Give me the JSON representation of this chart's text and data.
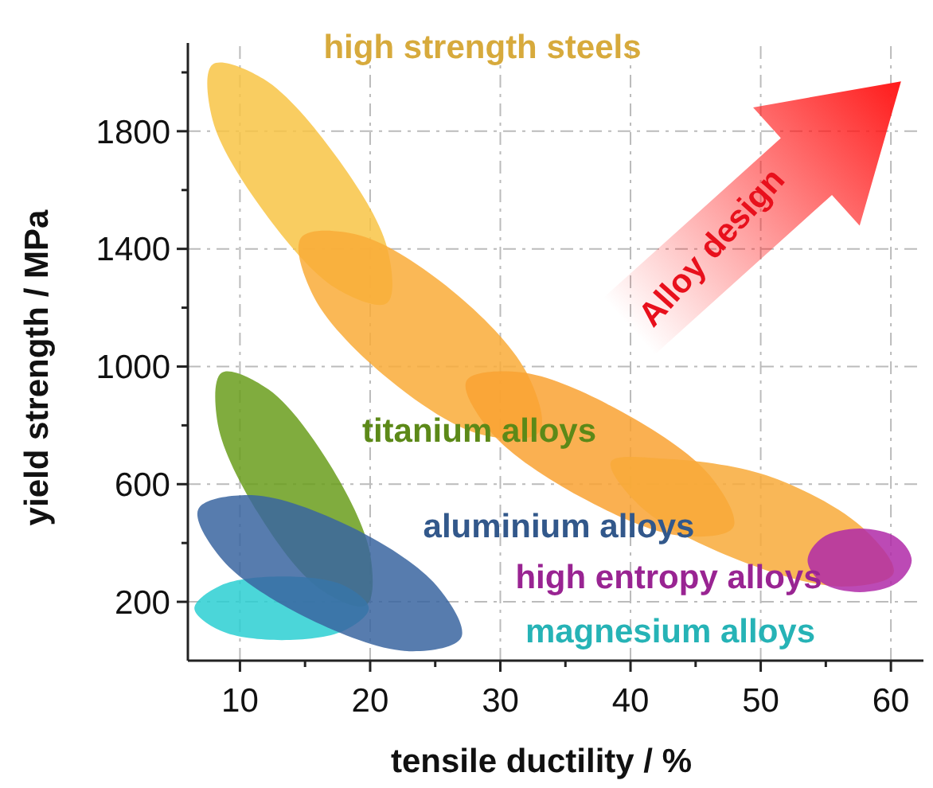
{
  "chart_data": {
    "type": "area",
    "xlabel": "tensile ductility / %",
    "ylabel": "yield strength / MPa",
    "xlim": [
      6,
      62.5
    ],
    "ylim": [
      0,
      2100
    ],
    "xticks": [
      10,
      {
        "value": 15,
        "label": null
      },
      20,
      {
        "value": 25,
        "label": null
      },
      30,
      {
        "value": 35,
        "label": null
      },
      40,
      {
        "value": 45,
        "label": null
      },
      50,
      {
        "value": 55,
        "label": null
      },
      60
    ],
    "yticks": [
      200,
      {
        "value": 400,
        "label": null
      },
      600,
      {
        "value": 800,
        "label": null
      },
      1000,
      {
        "value": 1200,
        "label": null
      },
      1400,
      {
        "value": 1600,
        "label": null
      },
      1800,
      {
        "value": 2000,
        "label": null
      }
    ],
    "grid": true,
    "series": [
      {
        "name": "high strength steels",
        "color": "#f8c445",
        "x": [
          21.3,
          21.3,
          17.3,
          11.8,
          7.9,
          7.9,
          11.9,
          17.4
        ],
        "values": [
          1216,
          1405,
          1720,
          1978,
          2027,
          1838,
          1523,
          1265
        ]
      },
      {
        "color": "#f9ac38",
        "x": [
          33.0,
          32.0,
          26.3,
          19.1,
          14.7,
          15.7,
          21.4,
          28.5
        ],
        "values": [
          778,
          981,
          1258,
          1447,
          1438,
          1235,
          958,
          769
        ]
      },
      {
        "color": "#f9a232",
        "x": [
          47.9,
          46.1,
          39.3,
          31.6,
          27.4,
          29.3,
          36.1,
          43.8
        ],
        "values": [
          454,
          629,
          847,
          980,
          951,
          776,
          558,
          425
        ]
      },
      {
        "color": "#f8aa3a",
        "x": [
          60.2,
          57.8,
          50.5,
          42.5,
          38.5,
          40.9,
          48.2,
          56.2
        ],
        "values": [
          297,
          453,
          629,
          687,
          676,
          519,
          344,
          252
        ]
      },
      {
        "name": "high entropy alloys",
        "color": "#b02aa8",
        "x": [
          61.6,
          60.5,
          57.6,
          54.7,
          53.6,
          54.7,
          57.6,
          60.5
        ],
        "values": [
          341,
          417,
          449,
          417,
          341,
          265,
          233,
          265
        ]
      },
      {
        "name": "titanium alloys",
        "color": "#6a9e1c",
        "x": [
          19.7,
          20.0,
          16.9,
          12.2,
          8.6,
          8.3,
          11.4,
          16.1
        ],
        "values": [
          189,
          363,
          667,
          922,
          979,
          804,
          501,
          245
        ]
      },
      {
        "name": "magnesium alloys",
        "color": "#2ccfd2",
        "x": [
          19.9,
          18.0,
          13.2,
          8.5,
          6.5,
          8.5,
          13.2,
          18.0
        ],
        "values": [
          178,
          255,
          286,
          255,
          178,
          102,
          70,
          102
        ]
      },
      {
        "name": "aluminium alloys",
        "color": "#3a65a0",
        "x": [
          27.0,
          25.1,
          18.5,
          10.9,
          6.8,
          8.7,
          15.4,
          23.0
        ],
        "values": [
          79,
          255,
          455,
          563,
          515,
          340,
          140,
          32
        ]
      }
    ],
    "annotations": [
      "Alloy design"
    ]
  }
}
